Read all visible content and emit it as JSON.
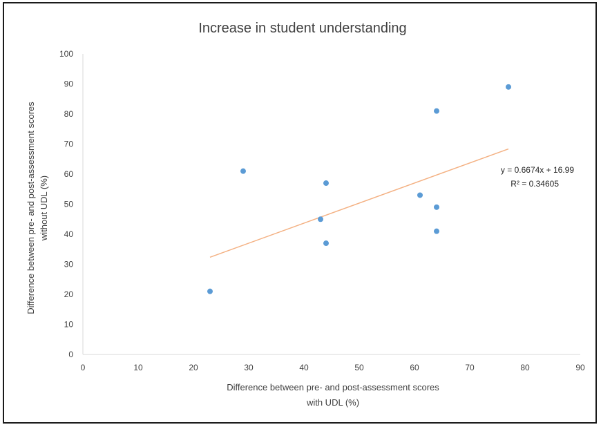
{
  "chart_data": {
    "type": "scatter",
    "title": "Increase in student understanding",
    "xlabel_lines": [
      "Difference  between  pre- and post-assessment scores",
      "with  UDL (%)"
    ],
    "ylabel_lines": [
      "Difference  between pre- and post-assessment scores",
      "without  UDL (%)"
    ],
    "xlim": [
      0,
      90
    ],
    "ylim": [
      0,
      100
    ],
    "xticks": [
      0,
      10,
      20,
      30,
      40,
      50,
      60,
      70,
      80,
      90
    ],
    "yticks": [
      0,
      10,
      20,
      30,
      40,
      50,
      60,
      70,
      80,
      90,
      100
    ],
    "grid": false,
    "points": [
      {
        "x": 23,
        "y": 21
      },
      {
        "x": 29,
        "y": 61
      },
      {
        "x": 43,
        "y": 45
      },
      {
        "x": 44,
        "y": 57
      },
      {
        "x": 44,
        "y": 37
      },
      {
        "x": 61,
        "y": 53
      },
      {
        "x": 64,
        "y": 81
      },
      {
        "x": 64,
        "y": 49
      },
      {
        "x": 64,
        "y": 41
      },
      {
        "x": 77,
        "y": 89
      }
    ],
    "trendline": {
      "type": "linear",
      "slope": 0.6674,
      "intercept": 16.99,
      "x_range": [
        23,
        77
      ],
      "equation": "y = 0.6674x + 16.99",
      "r_squared": "R² = 0.34605"
    },
    "colors": {
      "marker": "#5b9bd5",
      "trendline": "#f4b183",
      "axis": "#d9d9d9",
      "text": "#404040"
    }
  }
}
